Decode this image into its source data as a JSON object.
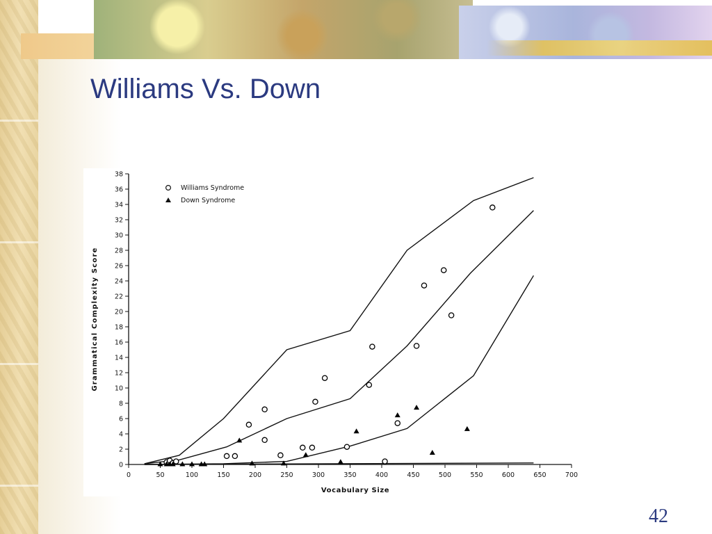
{
  "slide": {
    "title": "Williams Vs. Down",
    "page_number": "42"
  },
  "chart_data": {
    "type": "scatter",
    "title": "",
    "xlabel": "Vocabulary Size",
    "ylabel": "Grammatical Complexity Score",
    "xlim": [
      0,
      700
    ],
    "ylim": [
      0,
      38
    ],
    "x_ticks": [
      0,
      50,
      100,
      150,
      200,
      250,
      300,
      350,
      400,
      450,
      500,
      550,
      600,
      650,
      700
    ],
    "y_ticks": [
      0,
      2,
      4,
      6,
      8,
      10,
      12,
      14,
      16,
      18,
      20,
      22,
      24,
      26,
      28,
      30,
      32,
      34,
      36,
      38
    ],
    "legend_position": "top-left",
    "series": [
      {
        "name": "Williams Syndrome",
        "marker": "open-circle",
        "color": "#000000",
        "points": [
          [
            60,
            0.3
          ],
          [
            65,
            0.5
          ],
          [
            70,
            0.2
          ],
          [
            75,
            0.4
          ],
          [
            155,
            1.1
          ],
          [
            168,
            1.1
          ],
          [
            190,
            5.2
          ],
          [
            215,
            7.2
          ],
          [
            215,
            3.2
          ],
          [
            240,
            1.2
          ],
          [
            275,
            2.2
          ],
          [
            290,
            2.2
          ],
          [
            295,
            8.2
          ],
          [
            310,
            11.3
          ],
          [
            345,
            2.3
          ],
          [
            380,
            10.4
          ],
          [
            385,
            15.4
          ],
          [
            405,
            0.4
          ],
          [
            425,
            5.4
          ],
          [
            455,
            15.5
          ],
          [
            467,
            23.4
          ],
          [
            498,
            25.4
          ],
          [
            510,
            19.5
          ],
          [
            575,
            33.6
          ]
        ]
      },
      {
        "name": "Down Syndrome",
        "marker": "filled-triangle",
        "color": "#000000",
        "points": [
          [
            50,
            0
          ],
          [
            60,
            0
          ],
          [
            65,
            0
          ],
          [
            70,
            0
          ],
          [
            85,
            0
          ],
          [
            100,
            0
          ],
          [
            115,
            0
          ],
          [
            120,
            0
          ],
          [
            175,
            3.1
          ],
          [
            195,
            0.1
          ],
          [
            245,
            0.1
          ],
          [
            280,
            1.2
          ],
          [
            335,
            0.3
          ],
          [
            360,
            4.3
          ],
          [
            425,
            6.4
          ],
          [
            455,
            7.4
          ],
          [
            480,
            1.5
          ],
          [
            535,
            4.6
          ]
        ]
      }
    ],
    "reference_lines": [
      {
        "points": [
          [
            25,
            0.1
          ],
          [
            80,
            1.2
          ],
          [
            150,
            6
          ],
          [
            250,
            15
          ],
          [
            350,
            17.5
          ],
          [
            440,
            28
          ],
          [
            545,
            34.5
          ],
          [
            640,
            37.5
          ]
        ]
      },
      {
        "points": [
          [
            25,
            0.1
          ],
          [
            80,
            0.6
          ],
          [
            155,
            2.3
          ],
          [
            250,
            6
          ],
          [
            350,
            8.6
          ],
          [
            440,
            15.5
          ],
          [
            540,
            25
          ],
          [
            640,
            33.2
          ]
        ]
      },
      {
        "points": [
          [
            25,
            0
          ],
          [
            150,
            0.1
          ],
          [
            250,
            0.4
          ],
          [
            350,
            2.4
          ],
          [
            440,
            4.7
          ],
          [
            545,
            11.6
          ],
          [
            640,
            24.7
          ]
        ]
      },
      {
        "points": [
          [
            25,
            0
          ],
          [
            640,
            0.2
          ]
        ]
      }
    ]
  }
}
